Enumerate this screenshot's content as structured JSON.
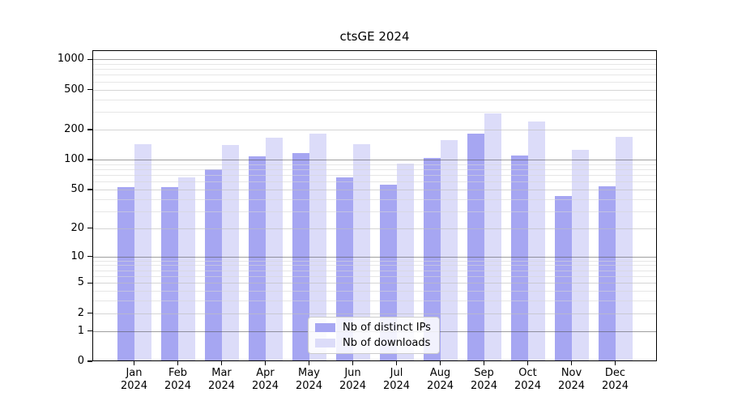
{
  "title": "ctsGE 2024",
  "chart_data": {
    "type": "bar",
    "title": "ctsGE 2024",
    "categories": [
      [
        "Jan",
        "2024"
      ],
      [
        "Feb",
        "2024"
      ],
      [
        "Mar",
        "2024"
      ],
      [
        "Apr",
        "2024"
      ],
      [
        "May",
        "2024"
      ],
      [
        "Jun",
        "2024"
      ],
      [
        "Jul",
        "2024"
      ],
      [
        "Aug",
        "2024"
      ],
      [
        "Sep",
        "2024"
      ],
      [
        "Oct",
        "2024"
      ],
      [
        "Nov",
        "2024"
      ],
      [
        "Dec",
        "2024"
      ]
    ],
    "series": [
      {
        "name": "Nb of distinct IPs",
        "key": "distinct-ips",
        "color": "#a6a6f2",
        "values": [
          53,
          53,
          80,
          107,
          117,
          66,
          56,
          104,
          183,
          109,
          43,
          54
        ]
      },
      {
        "name": "Nb of downloads",
        "key": "downloads",
        "color": "#dcdcf9",
        "values": [
          143,
          66,
          140,
          166,
          182,
          144,
          91,
          158,
          290,
          240,
          125,
          168
        ]
      }
    ],
    "y_ticks": [
      0,
      1,
      2,
      5,
      10,
      20,
      50,
      100,
      200,
      500,
      1000
    ],
    "y_minor_ticks": [
      3,
      4,
      6,
      7,
      8,
      9,
      30,
      40,
      60,
      70,
      80,
      90,
      300,
      400,
      600,
      700,
      800,
      900
    ],
    "y_decade_ticks": [
      1,
      10,
      100,
      1000
    ],
    "y_scale": "log1p",
    "ylim": [
      0,
      1230
    ],
    "xlabel": "",
    "ylabel": "",
    "grid": true,
    "legend_position": "lower center"
  },
  "colors": {
    "bar_dark": "#a6a6f2",
    "bar_light": "#dcdcf9",
    "grid_decade": "rgba(80,80,80,0.55)",
    "grid_major": "rgba(190,190,190,0.65)",
    "grid_minor": "rgba(214,214,214,0.60)",
    "frame": "#000000"
  }
}
